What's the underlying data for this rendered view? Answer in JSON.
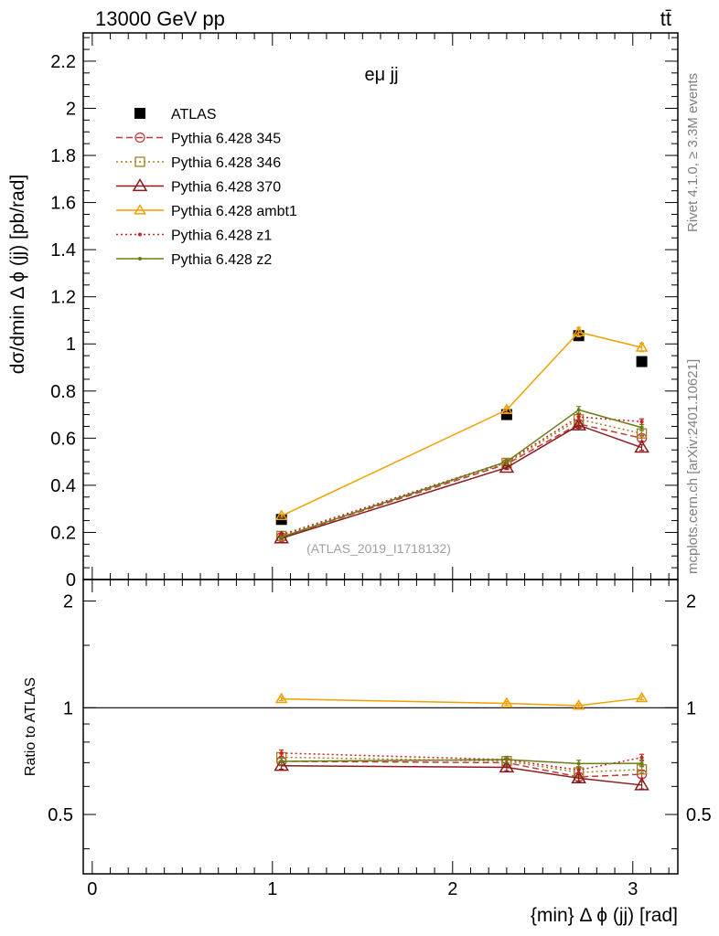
{
  "header": {
    "left": "13000 GeV pp",
    "right": "tt̄"
  },
  "side_labels": {
    "rivet": "Rivet 4.1.0, ≥ 3.3M events",
    "mcplots": "mcplots.cern.ch [arXiv:2401.10621]"
  },
  "chart_data": [
    {
      "type": "line",
      "panel": "main",
      "title": "eμ jj",
      "xlabel": "{min} Δ ϕ (jj) [rad]",
      "ylabel": "dσ/dmin Δ ϕ (jj) [pb/rad]",
      "xlim": [
        -0.05,
        3.25
      ],
      "ylim": [
        0,
        2.32
      ],
      "yticks": [
        0,
        0.2,
        0.4,
        0.6,
        0.8,
        1,
        1.2,
        1.4,
        1.6,
        1.8,
        2,
        2.2
      ],
      "ytick_labels": [
        "0",
        "0.2",
        "0.4",
        "0.6",
        "0.8",
        "1",
        "1.2",
        "1.4",
        "1.6",
        "1.8",
        "2",
        "2.2"
      ],
      "x": [
        1.05,
        2.3,
        2.7,
        3.05
      ],
      "watermark": "(ATLAS_2019_I1718132)",
      "legend_position": "top-left",
      "series": [
        {
          "name": "ATLAS",
          "color": "#000000",
          "marker": "square-filled",
          "line": "none",
          "values": [
            0.255,
            0.7,
            1.035,
            0.925
          ],
          "errors": [
            0.01,
            0.015,
            0.02,
            0.02
          ]
        },
        {
          "name": "Pythia 6.428 345",
          "color": "#c0393b",
          "marker": "circle-open",
          "line": "dashed",
          "values": [
            0.18,
            0.49,
            0.66,
            0.6
          ],
          "errors": [
            0.004,
            0.008,
            0.012,
            0.012
          ]
        },
        {
          "name": "Pythia 6.428 346",
          "color": "#a08020",
          "marker": "square-open",
          "line": "dotted",
          "values": [
            0.185,
            0.495,
            0.68,
            0.62
          ],
          "errors": [
            0.004,
            0.008,
            0.012,
            0.012
          ]
        },
        {
          "name": "Pythia 6.428 370",
          "color": "#8b1a1a",
          "marker": "triangle-open",
          "line": "solid",
          "values": [
            0.175,
            0.475,
            0.655,
            0.56
          ],
          "errors": [
            0.004,
            0.008,
            0.012,
            0.012
          ]
        },
        {
          "name": "Pythia 6.428 ambt1",
          "color": "#f0a000",
          "marker": "triangle-open",
          "line": "solid",
          "values": [
            0.27,
            0.72,
            1.05,
            0.985
          ],
          "errors": [
            0.006,
            0.012,
            0.02,
            0.018
          ]
        },
        {
          "name": "Pythia 6.428 z1",
          "color": "#cc2020",
          "marker": "dot",
          "line": "dotted",
          "values": [
            0.19,
            0.5,
            0.69,
            0.67
          ],
          "errors": [
            0.004,
            0.008,
            0.012,
            0.012
          ]
        },
        {
          "name": "Pythia 6.428 z2",
          "color": "#6b7d1a",
          "marker": "dot",
          "line": "solid",
          "values": [
            0.18,
            0.5,
            0.72,
            0.645
          ],
          "errors": [
            0.004,
            0.008,
            0.014,
            0.012
          ]
        }
      ]
    },
    {
      "type": "line",
      "panel": "ratio",
      "xlabel": "{min} Δ ϕ (jj) [rad]",
      "ylabel": "Ratio to ATLAS",
      "xlim": [
        -0.05,
        3.25
      ],
      "ylim": [
        0.34,
        2.3
      ],
      "yscale": "log",
      "yticks": [
        0.5,
        1,
        2
      ],
      "ytick_labels": [
        "0.5",
        "1",
        "2"
      ],
      "xticks": [
        0,
        1,
        2,
        3
      ],
      "xtick_labels": [
        "0",
        "1",
        "2",
        "3"
      ],
      "x": [
        1.05,
        2.3,
        2.7,
        3.05
      ],
      "series": [
        {
          "name": "Pythia 6.428 345",
          "color": "#c0393b",
          "marker": "circle-open",
          "line": "dashed",
          "values": [
            0.706,
            0.7,
            0.638,
            0.649
          ],
          "errors": [
            0.015,
            0.015,
            0.015,
            0.015
          ]
        },
        {
          "name": "Pythia 6.428 346",
          "color": "#a08020",
          "marker": "square-open",
          "line": "dotted",
          "values": [
            0.725,
            0.707,
            0.657,
            0.67
          ],
          "errors": [
            0.015,
            0.015,
            0.015,
            0.015
          ]
        },
        {
          "name": "Pythia 6.428 370",
          "color": "#8b1a1a",
          "marker": "triangle-open",
          "line": "solid",
          "values": [
            0.686,
            0.679,
            0.633,
            0.605
          ],
          "errors": [
            0.015,
            0.015,
            0.015,
            0.015
          ]
        },
        {
          "name": "Pythia 6.428 ambt1",
          "color": "#f0a000",
          "marker": "triangle-open",
          "line": "solid",
          "values": [
            1.059,
            1.029,
            1.014,
            1.065
          ],
          "errors": [
            0.012,
            0.012,
            0.012,
            0.012
          ]
        },
        {
          "name": "Pythia 6.428 z1",
          "color": "#cc2020",
          "marker": "dot",
          "line": "dotted",
          "values": [
            0.745,
            0.714,
            0.667,
            0.724
          ],
          "errors": [
            0.015,
            0.015,
            0.015,
            0.015
          ]
        },
        {
          "name": "Pythia 6.428 z2",
          "color": "#6b7d1a",
          "marker": "dot",
          "line": "solid",
          "values": [
            0.706,
            0.714,
            0.696,
            0.697
          ],
          "errors": [
            0.015,
            0.015,
            0.015,
            0.015
          ]
        }
      ]
    }
  ]
}
